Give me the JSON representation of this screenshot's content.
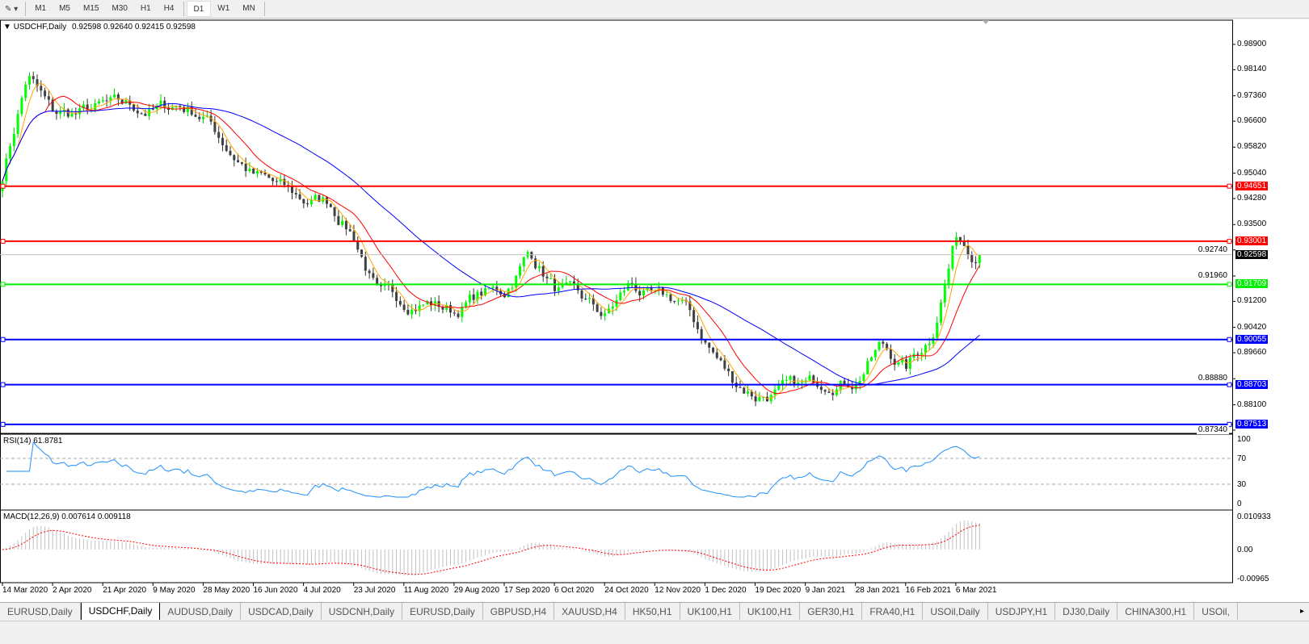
{
  "toolbar": {
    "timeframes": [
      "M1",
      "M5",
      "M15",
      "M30",
      "H1",
      "H4",
      "D1",
      "W1",
      "MN"
    ],
    "active": "D1"
  },
  "chart": {
    "symbol_label": "USDCHF,Daily",
    "ohlc": "0.92598 0.92640 0.92415 0.92598"
  },
  "price_axis": {
    "ticks": [
      "0.98900",
      "0.98140",
      "0.97360",
      "0.96600",
      "0.95820",
      "0.95040",
      "0.94280",
      "0.93500",
      "0.92740",
      "0.91960",
      "0.91200",
      "0.90420",
      "0.89660",
      "0.88880",
      "0.88100",
      "0.87340"
    ]
  },
  "levels": [
    {
      "price": "0.94651",
      "color": "#ff0000"
    },
    {
      "price": "0.93001",
      "color": "#ff0000"
    },
    {
      "price": "0.92598",
      "color": "#000000",
      "current": true
    },
    {
      "price": "0.91709",
      "color": "#00ee00"
    },
    {
      "price": "0.90055",
      "color": "#0000ff"
    },
    {
      "price": "0.88703",
      "color": "#0000ff"
    },
    {
      "price": "0.87513",
      "color": "#0000ff"
    }
  ],
  "rsi": {
    "label": "RSI(14) 61.8781",
    "ticks": [
      "100",
      "70",
      "30",
      "0"
    ],
    "color": "#1e90ff"
  },
  "macd": {
    "label": "MACD(12,26,9) 0.007614 0.009118",
    "ticks": [
      "0.010933",
      "0.00",
      "-0.00965"
    ],
    "signal_color": "#ff0000",
    "hist_color": "#c0c0c0"
  },
  "date_axis": [
    "14 Mar 2020",
    "2 Apr 2020",
    "21 Apr 2020",
    "9 May 2020",
    "28 May 2020",
    "16 Jun 2020",
    "4 Jul 2020",
    "23 Jul 2020",
    "11 Aug 2020",
    "29 Aug 2020",
    "17 Sep 2020",
    "6 Oct 2020",
    "24 Oct 2020",
    "12 Nov 2020",
    "1 Dec 2020",
    "19 Dec 2020",
    "9 Jan 2021",
    "28 Jan 2021",
    "16 Feb 2021",
    "6 Mar 2021"
  ],
  "chart_data": {
    "type": "candlestick",
    "bull_color": "#00ff00",
    "bear_color": "#404040",
    "ma_colors": [
      "#ffa500",
      "#ff0000",
      "#0000ff"
    ],
    "closes_approx": [
      0.95,
      0.98,
      0.968,
      0.968,
      0.97,
      0.97,
      0.969,
      0.971,
      0.968,
      0.958,
      0.95,
      0.946,
      0.942,
      0.942,
      0.932,
      0.913,
      0.912,
      0.912,
      0.909,
      0.914,
      0.915,
      0.927,
      0.916,
      0.912,
      0.907,
      0.917,
      0.912,
      0.912,
      0.9,
      0.889,
      0.884,
      0.885,
      0.886,
      0.889,
      0.889,
      0.899,
      0.892,
      0.902,
      0.932,
      0.92598
    ]
  },
  "tabs": [
    "EURUSD,Daily",
    "USDCHF,Daily",
    "AUDUSD,Daily",
    "USDCAD,Daily",
    "USDCNH,Daily",
    "EURUSD,Daily",
    "GBPUSD,H4",
    "XAUUSD,H4",
    "HK50,H1",
    "UK100,H1",
    "UK100,H1",
    "GER30,H1",
    "FRA40,H1",
    "USOil,Daily",
    "USDJPY,H1",
    "DJ30,Daily",
    "CHINA300,H1",
    "USOil,"
  ],
  "active_tab": 1
}
